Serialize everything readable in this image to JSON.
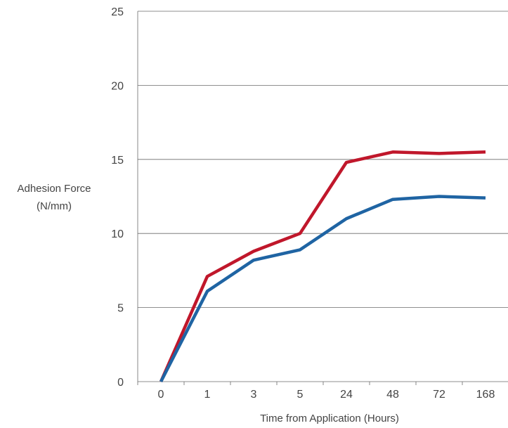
{
  "chart_data": {
    "type": "line",
    "title": "",
    "xlabel": "Time from Application (Hours)",
    "ylabel_lines": [
      "Adhesion Force",
      "(N/mm)"
    ],
    "categories": [
      "0",
      "1",
      "3",
      "5",
      "24",
      "48",
      "72",
      "168"
    ],
    "ylim": [
      0,
      25
    ],
    "yticks": [
      0,
      5,
      10,
      15,
      20,
      25
    ],
    "grid": "horizontal",
    "series": [
      {
        "color": "#c0172b",
        "values": [
          0,
          7.1,
          8.8,
          10.0,
          14.8,
          15.5,
          15.4,
          15.5
        ]
      },
      {
        "color": "#1f64a3",
        "values": [
          0,
          6.1,
          8.2,
          8.9,
          11.0,
          12.3,
          12.5,
          12.4
        ]
      }
    ]
  }
}
